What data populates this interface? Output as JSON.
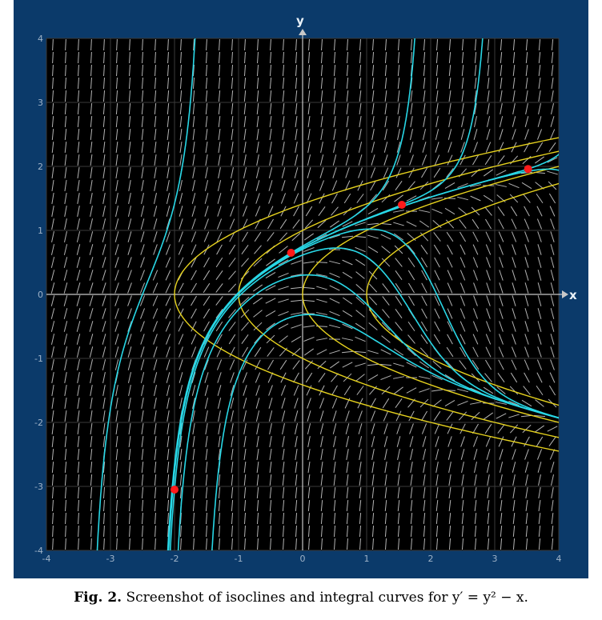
{
  "chart_data": {
    "type": "line",
    "equation": "y' = y^2 - x",
    "xlabel": "x",
    "ylabel": "y",
    "xlim": [
      -4,
      4
    ],
    "ylim": [
      -4,
      4
    ],
    "x_ticks": [
      "-4",
      "-3",
      "-2",
      "-1",
      "0",
      "1",
      "2",
      "3",
      "4"
    ],
    "y_ticks": [
      "-4",
      "-3",
      "-2",
      "-1",
      "0",
      "1",
      "2",
      "3",
      "4"
    ],
    "grid": true,
    "slope_field": true,
    "isoclines": [
      {
        "c": 0
      },
      {
        "c": 1
      },
      {
        "c": -1
      },
      {
        "c": 2
      }
    ],
    "integral_curves": [
      {
        "x0": -2.0,
        "y0": -3.05,
        "marked": true
      },
      {
        "x0": -0.18,
        "y0": 0.65,
        "marked": true
      },
      {
        "x0": 1.55,
        "y0": 1.4,
        "marked": true
      },
      {
        "x0": 3.52,
        "y0": 1.96,
        "marked": true
      },
      {
        "x0": 0.0,
        "y0": 0.3,
        "marked": false
      },
      {
        "x0": 0.0,
        "y0": -0.32,
        "marked": false
      },
      {
        "x0": 1.0,
        "y0": 1.02,
        "marked": false
      },
      {
        "x0": 3.7,
        "y0": 1.95,
        "marked": false
      },
      {
        "x0": -2.5,
        "y0": 0.0,
        "marked": false
      }
    ],
    "colors": {
      "background": "#0b3a6a",
      "plot_area": "#000000",
      "integral_curve": "#28d7e6",
      "isocline": "#e6d21e",
      "point": "#ff1a1a",
      "slope_marks": "#b4b4b4",
      "axes": "#c8c8c8"
    }
  },
  "caption": {
    "label": "Fig. 2.",
    "text": "Screenshot of isoclines and integral curves for y′ = y² − x."
  }
}
